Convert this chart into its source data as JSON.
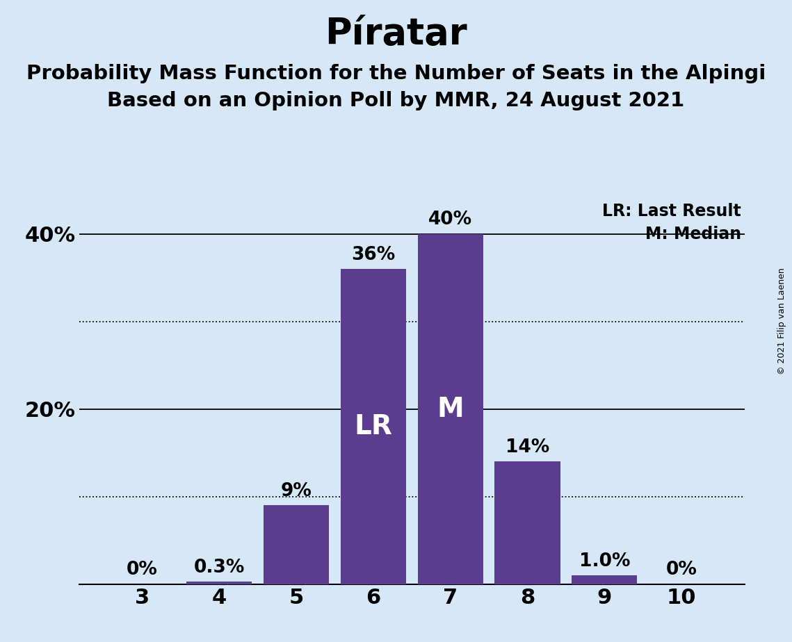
{
  "title": "Píratar",
  "subtitle1": "Probability Mass Function for the Number of Seats in the Alpingi",
  "subtitle2": "Based on an Opinion Poll by MMR, 24 August 2021",
  "copyright": "© 2021 Filip van Laenen",
  "seats": [
    3,
    4,
    5,
    6,
    7,
    8,
    9,
    10
  ],
  "probabilities": [
    0.0,
    0.3,
    9.0,
    36.0,
    40.0,
    14.0,
    1.0,
    0.0
  ],
  "bar_color": "#5b3d8f",
  "background_color": "#d6e8f7",
  "last_result": 6,
  "median": 7,
  "lr_label": "LR",
  "median_label": "M",
  "legend_lr": "LR: Last Result",
  "legend_m": "M: Median",
  "ytick_labels": [
    20,
    40
  ],
  "solid_lines": [
    20,
    40
  ],
  "dotted_lines": [
    10,
    30
  ],
  "ylim": [
    0,
    44
  ],
  "bar_label_fontsize": 19,
  "tick_fontsize": 22,
  "title_fontsize": 38,
  "subtitle_fontsize": 21,
  "legend_fontsize": 17,
  "inside_label_fontsize": 28,
  "copyright_fontsize": 9
}
